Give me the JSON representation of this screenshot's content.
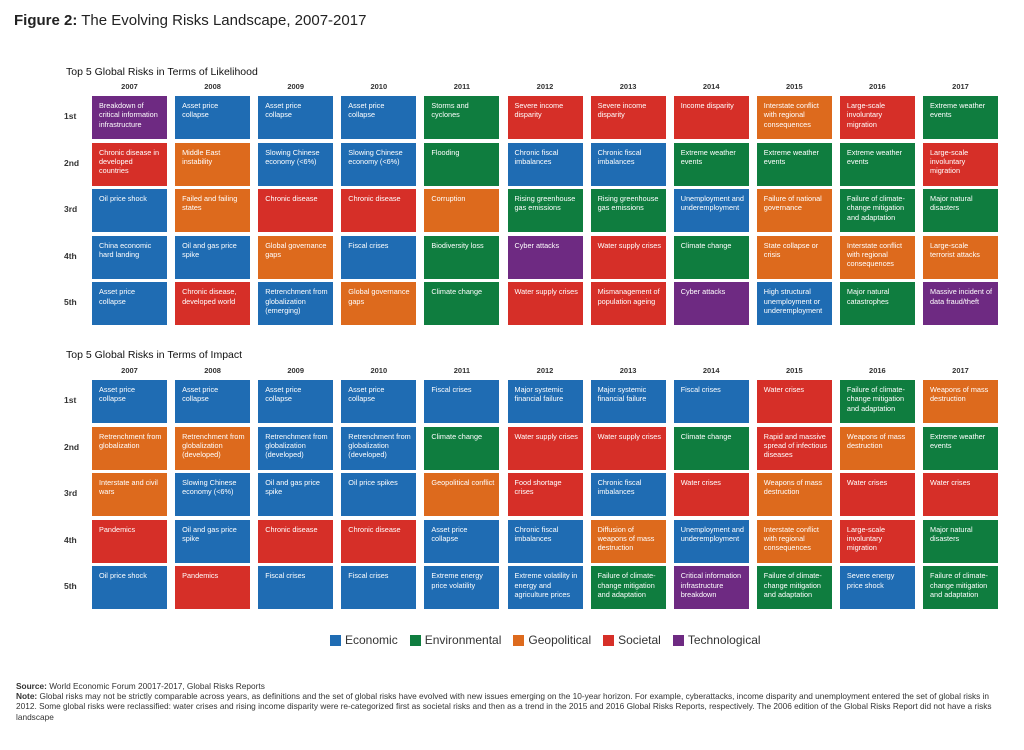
{
  "figure": {
    "title_bold": "Figure 2:",
    "title_rest": " The Evolving Risks Landscape, 2007-2017"
  },
  "colors": {
    "Economic": "#1f6cb3",
    "Environmental": "#0f7d3f",
    "Geopolitical": "#dd6a1d",
    "Societal": "#d62f28",
    "Technological": "#6e2a82"
  },
  "chart_data": [
    {
      "type": "table",
      "title": "Top 5 Global Risks in Terms of Likelihood",
      "years": [
        "2007",
        "2008",
        "2009",
        "2010",
        "2011",
        "2012",
        "2013",
        "2014",
        "2015",
        "2016",
        "2017"
      ],
      "ranks": [
        "1st",
        "2nd",
        "3rd",
        "4th",
        "5th"
      ],
      "rows": [
        [
          {
            "text": "Breakdown of critical information infrastructure",
            "category": "Technological"
          },
          {
            "text": "Asset price collapse",
            "category": "Economic"
          },
          {
            "text": "Asset price collapse",
            "category": "Economic"
          },
          {
            "text": "Asset price collapse",
            "category": "Economic"
          },
          {
            "text": "Storms and cyclones",
            "category": "Environmental"
          },
          {
            "text": "Severe income disparity",
            "category": "Societal"
          },
          {
            "text": "Severe income disparity",
            "category": "Societal"
          },
          {
            "text": "Income disparity",
            "category": "Societal"
          },
          {
            "text": "Interstate conflict with regional consequences",
            "category": "Geopolitical"
          },
          {
            "text": "Large-scale involuntary migration",
            "category": "Societal"
          },
          {
            "text": "Extreme weather events",
            "category": "Environmental"
          }
        ],
        [
          {
            "text": "Chronic disease in developed countries",
            "category": "Societal"
          },
          {
            "text": "Middle East instability",
            "category": "Geopolitical"
          },
          {
            "text": "Slowing Chinese economy (<6%)",
            "category": "Economic"
          },
          {
            "text": "Slowing Chinese economy (<6%)",
            "category": "Economic"
          },
          {
            "text": "Flooding",
            "category": "Environmental"
          },
          {
            "text": "Chronic fiscal imbalances",
            "category": "Economic"
          },
          {
            "text": "Chronic fiscal imbalances",
            "category": "Economic"
          },
          {
            "text": "Extreme weather events",
            "category": "Environmental"
          },
          {
            "text": "Extreme weather events",
            "category": "Environmental"
          },
          {
            "text": "Extreme weather events",
            "category": "Environmental"
          },
          {
            "text": "Large-scale involuntary migration",
            "category": "Societal"
          }
        ],
        [
          {
            "text": "Oil price shock",
            "category": "Economic"
          },
          {
            "text": "Failed and failing states",
            "category": "Geopolitical"
          },
          {
            "text": "Chronic disease",
            "category": "Societal"
          },
          {
            "text": "Chronic disease",
            "category": "Societal"
          },
          {
            "text": "Corruption",
            "category": "Geopolitical"
          },
          {
            "text": "Rising greenhouse gas emissions",
            "category": "Environmental"
          },
          {
            "text": "Rising greenhouse gas emissions",
            "category": "Environmental"
          },
          {
            "text": "Unemployment and underemployment",
            "category": "Economic"
          },
          {
            "text": "Failure of national governance",
            "category": "Geopolitical"
          },
          {
            "text": "Failure of climate-change mitigation and adaptation",
            "category": "Environmental"
          },
          {
            "text": "Major natural disasters",
            "category": "Environmental"
          }
        ],
        [
          {
            "text": "China economic hard landing",
            "category": "Economic"
          },
          {
            "text": "Oil and gas price spike",
            "category": "Economic"
          },
          {
            "text": "Global governance gaps",
            "category": "Geopolitical"
          },
          {
            "text": "Fiscal crises",
            "category": "Economic"
          },
          {
            "text": "Biodiversity loss",
            "category": "Environmental"
          },
          {
            "text": "Cyber attacks",
            "category": "Technological"
          },
          {
            "text": "Water supply crises",
            "category": "Societal"
          },
          {
            "text": "Climate change",
            "category": "Environmental"
          },
          {
            "text": "State collapse or crisis",
            "category": "Geopolitical"
          },
          {
            "text": "Interstate conflict with regional consequences",
            "category": "Geopolitical"
          },
          {
            "text": "Large-scale terrorist attacks",
            "category": "Geopolitical"
          }
        ],
        [
          {
            "text": "Asset price collapse",
            "category": "Economic"
          },
          {
            "text": "Chronic disease, developed world",
            "category": "Societal"
          },
          {
            "text": "Retrenchment from globalization (emerging)",
            "category": "Economic"
          },
          {
            "text": "Global governance gaps",
            "category": "Geopolitical"
          },
          {
            "text": "Climate change",
            "category": "Environmental"
          },
          {
            "text": "Water supply crises",
            "category": "Societal"
          },
          {
            "text": "Mismanagement of population ageing",
            "category": "Societal"
          },
          {
            "text": "Cyber attacks",
            "category": "Technological"
          },
          {
            "text": "High structural unemployment or underemployment",
            "category": "Economic"
          },
          {
            "text": "Major natural catastrophes",
            "category": "Environmental"
          },
          {
            "text": "Massive incident of data fraud/theft",
            "category": "Technological"
          }
        ]
      ]
    },
    {
      "type": "table",
      "title": "Top 5 Global Risks in Terms of Impact",
      "years": [
        "2007",
        "2008",
        "2009",
        "2010",
        "2011",
        "2012",
        "2013",
        "2014",
        "2015",
        "2016",
        "2017"
      ],
      "ranks": [
        "1st",
        "2nd",
        "3rd",
        "4th",
        "5th"
      ],
      "rows": [
        [
          {
            "text": "Asset price collapse",
            "category": "Economic"
          },
          {
            "text": "Asset price collapse",
            "category": "Economic"
          },
          {
            "text": "Asset price collapse",
            "category": "Economic"
          },
          {
            "text": "Asset price collapse",
            "category": "Economic"
          },
          {
            "text": "Fiscal crises",
            "category": "Economic"
          },
          {
            "text": "Major systemic financial failure",
            "category": "Economic"
          },
          {
            "text": "Major systemic financial failure",
            "category": "Economic"
          },
          {
            "text": "Fiscal crises",
            "category": "Economic"
          },
          {
            "text": "Water crises",
            "category": "Societal"
          },
          {
            "text": "Failure of climate-change mitigation and adaptation",
            "category": "Environmental"
          },
          {
            "text": "Weapons of mass destruction",
            "category": "Geopolitical"
          }
        ],
        [
          {
            "text": "Retrenchment from globalization",
            "category": "Geopolitical"
          },
          {
            "text": "Retrenchment from globalization (developed)",
            "category": "Geopolitical"
          },
          {
            "text": "Retrenchment from globalization (developed)",
            "category": "Economic"
          },
          {
            "text": "Retrenchment from globalization (developed)",
            "category": "Economic"
          },
          {
            "text": "Climate change",
            "category": "Environmental"
          },
          {
            "text": "Water supply crises",
            "category": "Societal"
          },
          {
            "text": "Water supply crises",
            "category": "Societal"
          },
          {
            "text": "Climate change",
            "category": "Environmental"
          },
          {
            "text": "Rapid and massive spread of infectious diseases",
            "category": "Societal"
          },
          {
            "text": "Weapons of mass destruction",
            "category": "Geopolitical"
          },
          {
            "text": "Extreme weather events",
            "category": "Environmental"
          }
        ],
        [
          {
            "text": "Interstate and civil wars",
            "category": "Geopolitical"
          },
          {
            "text": "Slowing Chinese economy (<6%)",
            "category": "Economic"
          },
          {
            "text": "Oil and gas price spike",
            "category": "Economic"
          },
          {
            "text": "Oil price spikes",
            "category": "Economic"
          },
          {
            "text": "Geopolitical conflict",
            "category": "Geopolitical"
          },
          {
            "text": "Food shortage crises",
            "category": "Societal"
          },
          {
            "text": "Chronic fiscal imbalances",
            "category": "Economic"
          },
          {
            "text": "Water crises",
            "category": "Societal"
          },
          {
            "text": "Weapons of mass destruction",
            "category": "Geopolitical"
          },
          {
            "text": "Water crises",
            "category": "Societal"
          },
          {
            "text": "Water crises",
            "category": "Societal"
          }
        ],
        [
          {
            "text": "Pandemics",
            "category": "Societal"
          },
          {
            "text": "Oil and gas price spike",
            "category": "Economic"
          },
          {
            "text": "Chronic disease",
            "category": "Societal"
          },
          {
            "text": "Chronic disease",
            "category": "Societal"
          },
          {
            "text": "Asset price collapse",
            "category": "Economic"
          },
          {
            "text": "Chronic fiscal imbalances",
            "category": "Economic"
          },
          {
            "text": "Diffusion of weapons of mass destruction",
            "category": "Geopolitical"
          },
          {
            "text": "Unemployment and underemployment",
            "category": "Economic"
          },
          {
            "text": "Interstate conflict with regional consequences",
            "category": "Geopolitical"
          },
          {
            "text": "Large-scale involuntary migration",
            "category": "Societal"
          },
          {
            "text": "Major natural disasters",
            "category": "Environmental"
          }
        ],
        [
          {
            "text": "Oil price shock",
            "category": "Economic"
          },
          {
            "text": "Pandemics",
            "category": "Societal"
          },
          {
            "text": "Fiscal crises",
            "category": "Economic"
          },
          {
            "text": "Fiscal crises",
            "category": "Economic"
          },
          {
            "text": "Extreme energy price volatility",
            "category": "Economic"
          },
          {
            "text": "Extreme volatility in energy and agriculture prices",
            "category": "Economic"
          },
          {
            "text": "Failure of climate-change mitigation and adaptation",
            "category": "Environmental"
          },
          {
            "text": "Critical information infrastructure breakdown",
            "category": "Technological"
          },
          {
            "text": "Failure of climate-change mitigation and adaptation",
            "category": "Environmental"
          },
          {
            "text": "Severe energy price shock",
            "category": "Economic"
          },
          {
            "text": "Failure of climate-change mitigation and adaptation",
            "category": "Environmental"
          }
        ]
      ]
    }
  ],
  "legend": {
    "items": [
      "Economic",
      "Environmental",
      "Geopolitical",
      "Societal",
      "Technological"
    ]
  },
  "footer": {
    "source_label": "Source:",
    "source_text": " World Economic Forum 20017-2017, Global Risks Reports",
    "note_label": "Note:",
    "note_text": " Global risks may not be strictly comparable across years, as definitions and the set of global risks have evolved with new issues emerging on the 10-year horizon. For example, cyberattacks, income disparity and unemployment entered the set of global risks in 2012. Some global risks were reclassified: water crises and rising income disparity were re-categorized first as societal risks and then as a trend in the 2015 and 2016 Global Risks Reports, respectively. The 2006 edition of the Global Risks Report did not have a risks landscape"
  }
}
